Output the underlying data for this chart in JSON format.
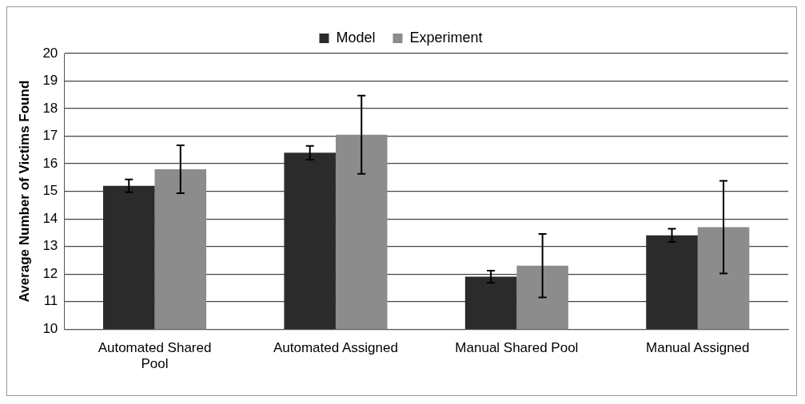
{
  "chart_data": {
    "type": "bar",
    "ylabel": "Average Number of Victims Found",
    "categories": [
      "Automated Shared Pool",
      "Automated Assigned",
      "Manual Shared Pool",
      "Manual Assigned"
    ],
    "series": [
      {
        "name": "Model",
        "color": "#2b2b2b",
        "values": [
          15.2,
          16.4,
          11.9,
          13.4
        ],
        "errors": [
          0.23,
          0.25,
          0.22,
          0.24
        ]
      },
      {
        "name": "Experiment",
        "color": "#8c8c8c",
        "values": [
          15.8,
          17.05,
          12.3,
          13.7
        ],
        "errors": [
          0.87,
          1.42,
          1.15,
          1.68
        ]
      }
    ],
    "ylim": [
      10,
      20
    ],
    "yticks": [
      10,
      11,
      12,
      13,
      14,
      15,
      16,
      17,
      18,
      19,
      20
    ],
    "grid": "y",
    "legend": "top"
  }
}
